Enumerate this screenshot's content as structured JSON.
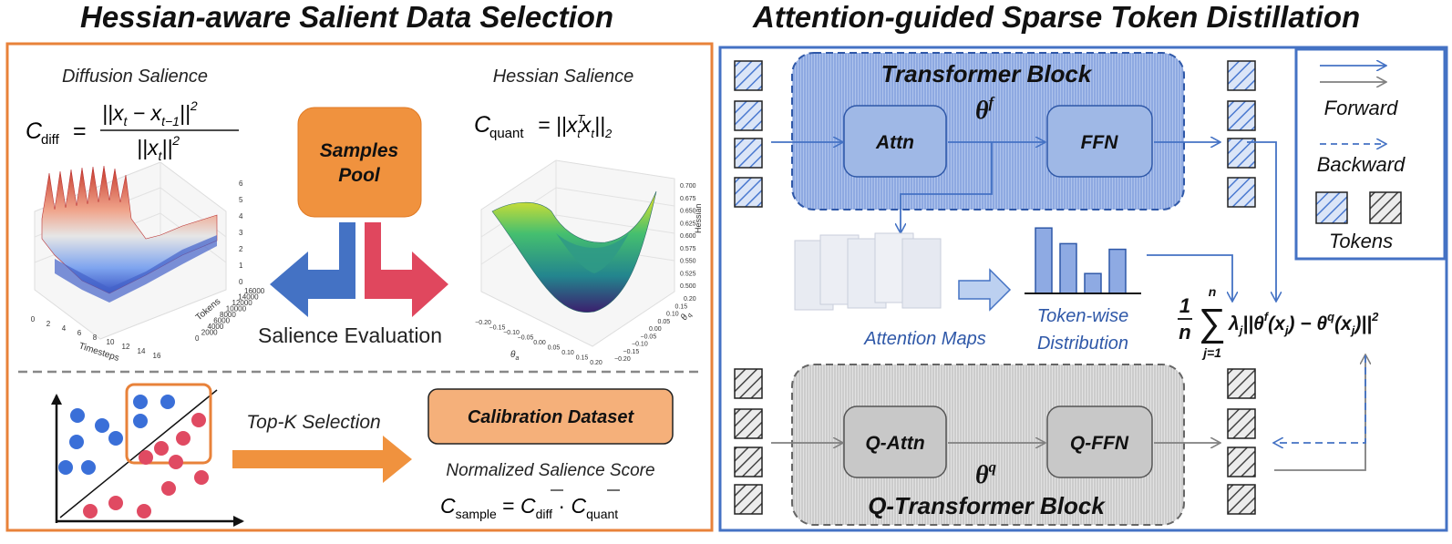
{
  "left_panel": {
    "title": "Hessian-aware Salient Data Selection",
    "diffusion_salience": {
      "heading": "Diffusion Salience",
      "formula_lhs": "C",
      "formula_lhs_sub": "diff",
      "formula_num": "||x",
      "formula_num_sub1": "t",
      "formula_num_mid": " − x",
      "formula_num_sub2": "t−1",
      "formula_num_end": "||",
      "formula_num_pow": "2",
      "formula_den": "||x",
      "formula_den_sub": "t",
      "formula_den_end": "||",
      "formula_den_pow": "2",
      "plot": {
        "x_axis_label": "Timesteps",
        "y_axis_label": "Tokens",
        "x_ticks": [
          "0",
          "2",
          "4",
          "6",
          "8",
          "10",
          "12",
          "14",
          "16"
        ],
        "y_ticks": [
          "0",
          "2000",
          "4000",
          "6000",
          "8000",
          "10000",
          "12000",
          "14000",
          "16000"
        ],
        "z_ticks": [
          "0",
          "1",
          "2",
          "3",
          "4",
          "5",
          "6"
        ]
      }
    },
    "samples_pool": {
      "line1": "Samples",
      "line2": "Pool"
    },
    "salience_evaluation": "Salience Evaluation",
    "hessian_salience": {
      "heading": "Hessian Salience",
      "formula_lhs": "C",
      "formula_lhs_sub": "quant",
      "formula_rhs": "= ||x",
      "formula_rhs_sup": "T",
      "formula_rhs_sub": "t",
      "formula_rhs_mid": "x",
      "formula_rhs_sub2": "t",
      "formula_rhs_end": "||",
      "formula_rhs_end_sub": "2",
      "plot": {
        "z_axis_label": "Hessian",
        "x_axis_label": "θ",
        "x_axis_label_sub": "a",
        "y_axis_label": "θ",
        "y_axis_label_sub": "q",
        "x_ticks": [
          "−0.20",
          "−0.15",
          "−0.10",
          "−0.05",
          "0.00",
          "0.05",
          "0.10",
          "0.15",
          "0.20"
        ],
        "y_ticks": [
          "−0.20",
          "−0.15",
          "−0.10",
          "−0.05",
          "0.00",
          "0.05",
          "0.10",
          "0.15",
          "0.20"
        ],
        "z_ticks": [
          "0.500",
          "0.525",
          "0.550",
          "0.575",
          "0.600",
          "0.625",
          "0.650",
          "0.675",
          "0.700"
        ]
      }
    },
    "topk_selection": "Top-K Selection",
    "calibration_dataset": "Calibration Dataset",
    "normalized_score": "Normalized Salience Score",
    "sample_formula": {
      "lhs": "C",
      "lhs_sub": "sample",
      "eq": " = ",
      "c1": "C",
      "c1_sub": "diff",
      "dot": " · ",
      "c2": "C",
      "c2_sub": "quant"
    }
  },
  "right_panel": {
    "title": "Attention-guided Sparse Token Distillation",
    "transformer_block": "Transformer Block",
    "theta_f": "θ",
    "theta_f_sup": "f",
    "attn": "Attn",
    "ffn": "FFN",
    "attention_maps": "Attention Maps",
    "token_wise_line1": "Token-wise",
    "token_wise_line2": "Distribution",
    "token_distribution": [
      0.92,
      0.7,
      0.28,
      0.62
    ],
    "q_transformer_block": "Q-Transformer Block",
    "theta_q": "θ",
    "theta_q_sup": "q",
    "q_attn": "Q-Attn",
    "q_ffn": "Q-FFN",
    "loss": {
      "frac_num": "1",
      "frac_den": "n",
      "sum_top": "n",
      "sum_bottom": "j=1",
      "lam": "λ",
      "lam_sub": "j",
      "open": "||",
      "theta": "θ",
      "f_sup": "f",
      "xj_open": "(x",
      "j": "j",
      "xj_close": ")",
      "minus": " − ",
      "q_sup": "q",
      "close": "||",
      "pow": "2"
    },
    "legend": {
      "forward": "Forward",
      "backward": "Backward",
      "tokens": "Tokens"
    }
  },
  "colors": {
    "orange_border": "#e8823a",
    "blue_border": "#4472c4",
    "blue_arrow": "#4472c4",
    "gray_arrow": "#808080",
    "red_arrow": "#e0475e",
    "samples_pool_fill": "#f0923e",
    "calibration_fill": "#f5b07a",
    "block_blue": "#9fb8e6",
    "block_gray": "#c8c8c8",
    "dot_blue": "#3a6fd8",
    "dot_red": "#e04a62"
  }
}
